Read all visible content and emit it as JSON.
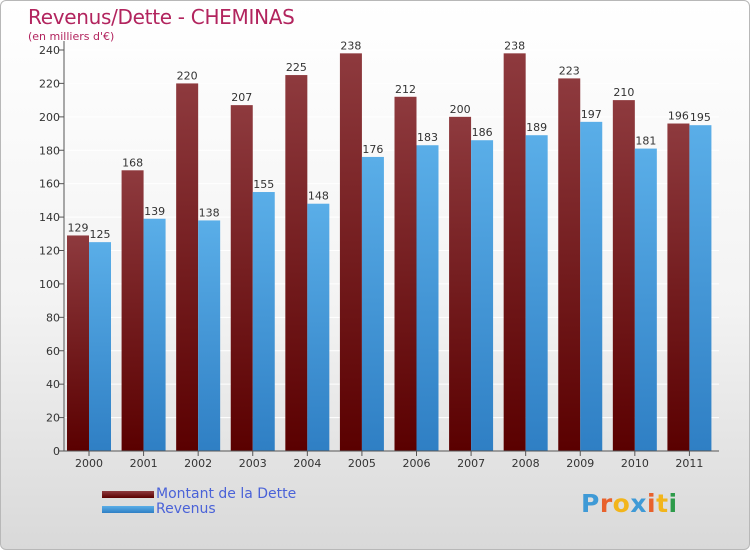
{
  "header": {
    "title": "Revenus/Dette - CHEMINAS",
    "subtitle": "(en milliers d'€)"
  },
  "logo": {
    "text": "Proxiti",
    "letter_colors": [
      "#3f9ad6",
      "#e8612c",
      "#f2b51b",
      "#3f9ad6",
      "#e8612c",
      "#f2b51b",
      "#2d9b4a"
    ]
  },
  "colors": {
    "dette_top": "#8e3a3e",
    "dette_bottom": "#5a0000",
    "revenus_top": "#5aaee8",
    "revenus_bottom": "#2f7fc4",
    "accent": "#b2245e",
    "legend_text": "#4a62d8"
  },
  "chart_data": {
    "type": "bar",
    "title": "Revenus/Dette - CHEMINAS",
    "subtitle": "(en milliers d'€)",
    "categories": [
      "2000",
      "2001",
      "2002",
      "2003",
      "2004",
      "2005",
      "2006",
      "2007",
      "2008",
      "2009",
      "2010",
      "2011"
    ],
    "series": [
      {
        "name": "Montant de la Dette",
        "values": [
          129,
          168,
          220,
          207,
          225,
          238,
          212,
          200,
          238,
          223,
          210,
          196
        ]
      },
      {
        "name": "Revenus",
        "values": [
          125,
          139,
          138,
          155,
          148,
          176,
          183,
          186,
          189,
          197,
          181,
          195
        ]
      }
    ],
    "ylim": [
      0,
      240
    ],
    "yticks": [
      0,
      20,
      40,
      60,
      80,
      100,
      120,
      140,
      160,
      180,
      200,
      220,
      240
    ],
    "grid": true,
    "legend_position": "bottom-left"
  }
}
